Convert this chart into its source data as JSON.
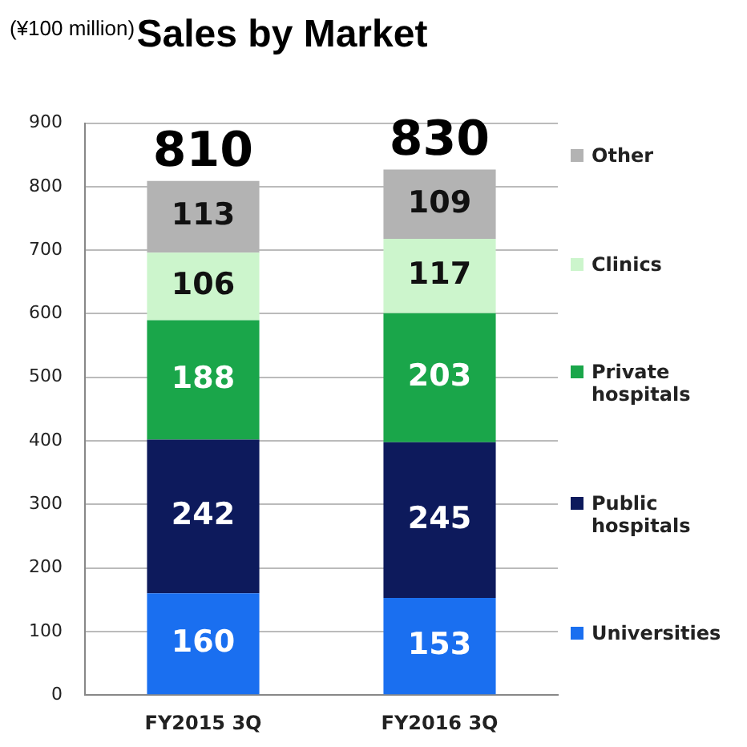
{
  "chart_data": {
    "type": "bar",
    "title": "Sales by Market",
    "ylabel": "(¥100 million)",
    "categories": [
      "FY2015 3Q",
      "FY2016 3Q"
    ],
    "stacked": true,
    "series": [
      {
        "name": "Universities",
        "color": "#1a6ff0",
        "values": [
          160,
          153
        ]
      },
      {
        "name": "Public hospitals",
        "color": "#0d1a5c",
        "values": [
          242,
          245
        ]
      },
      {
        "name": "Private hospitals",
        "color": "#1aa64a",
        "values": [
          188,
          203
        ]
      },
      {
        "name": "Clinics",
        "color": "#ccf5cc",
        "values": [
          106,
          117
        ]
      },
      {
        "name": "Other",
        "color": "#b3b3b3",
        "values": [
          113,
          109
        ]
      }
    ],
    "ylim": [
      0,
      900
    ],
    "yticks": [
      0,
      100,
      200,
      300,
      400,
      500,
      600,
      700,
      800,
      900
    ],
    "grid": "y",
    "data_labels": true,
    "totals": [
      "810",
      "830"
    ],
    "legend": "right"
  }
}
